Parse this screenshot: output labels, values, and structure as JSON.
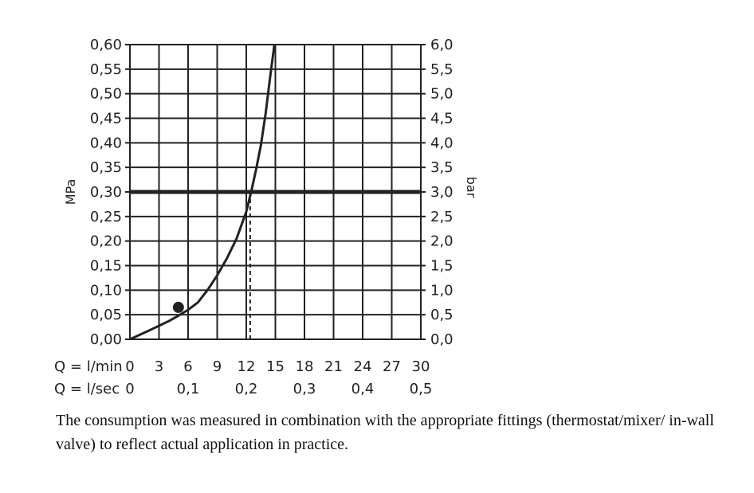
{
  "chart_data": {
    "type": "line",
    "ylabel_left": "MPa",
    "ylabel_right": "bar",
    "ylim": [
      0,
      0.6
    ],
    "yticks_left": [
      "0,00",
      "0,05",
      "0,10",
      "0,15",
      "0,20",
      "0,25",
      "0,30",
      "0,35",
      "0,40",
      "0,45",
      "0,50",
      "0,55",
      "0,60"
    ],
    "yticks_right": [
      "0,0",
      "0,5",
      "1,0",
      "1,5",
      "2,0",
      "2,5",
      "3,0",
      "3,5",
      "4,0",
      "4,5",
      "5,0",
      "5,5",
      "6,0"
    ],
    "xlim": [
      0,
      30
    ],
    "x_row1_label": "Q = l/min",
    "xticks_lmin": [
      "0",
      "3",
      "6",
      "9",
      "12",
      "15",
      "18",
      "21",
      "24",
      "27",
      "30"
    ],
    "x_row2_label": "Q = l/sec",
    "xticks_lsec": [
      "0",
      "0,1",
      "0,2",
      "0,3",
      "0,4",
      "0,5"
    ],
    "grid": true,
    "series": [
      {
        "x": [
          0,
          2,
          4,
          5,
          6,
          7,
          8,
          9,
          10,
          11,
          12,
          12.5,
          13,
          13.5,
          14,
          14.5,
          14.9
        ],
        "y": [
          0,
          0.018,
          0.037,
          0.048,
          0.06,
          0.075,
          0.1,
          0.13,
          0.165,
          0.205,
          0.26,
          0.3,
          0.345,
          0.395,
          0.46,
          0.54,
          0.6
        ]
      }
    ],
    "reference_line": {
      "y": 0.3,
      "x_intersect": 12.4
    },
    "marker_point": {
      "x": 5,
      "y": 0.065
    }
  },
  "caption": "The consumption was measured in combination with the appropriate fittings (thermostat/mixer/ in-wall valve) to reflect actual application in practice.",
  "colors": {
    "ink": "#222222",
    "grid": "#222222",
    "background": "#ffffff"
  }
}
